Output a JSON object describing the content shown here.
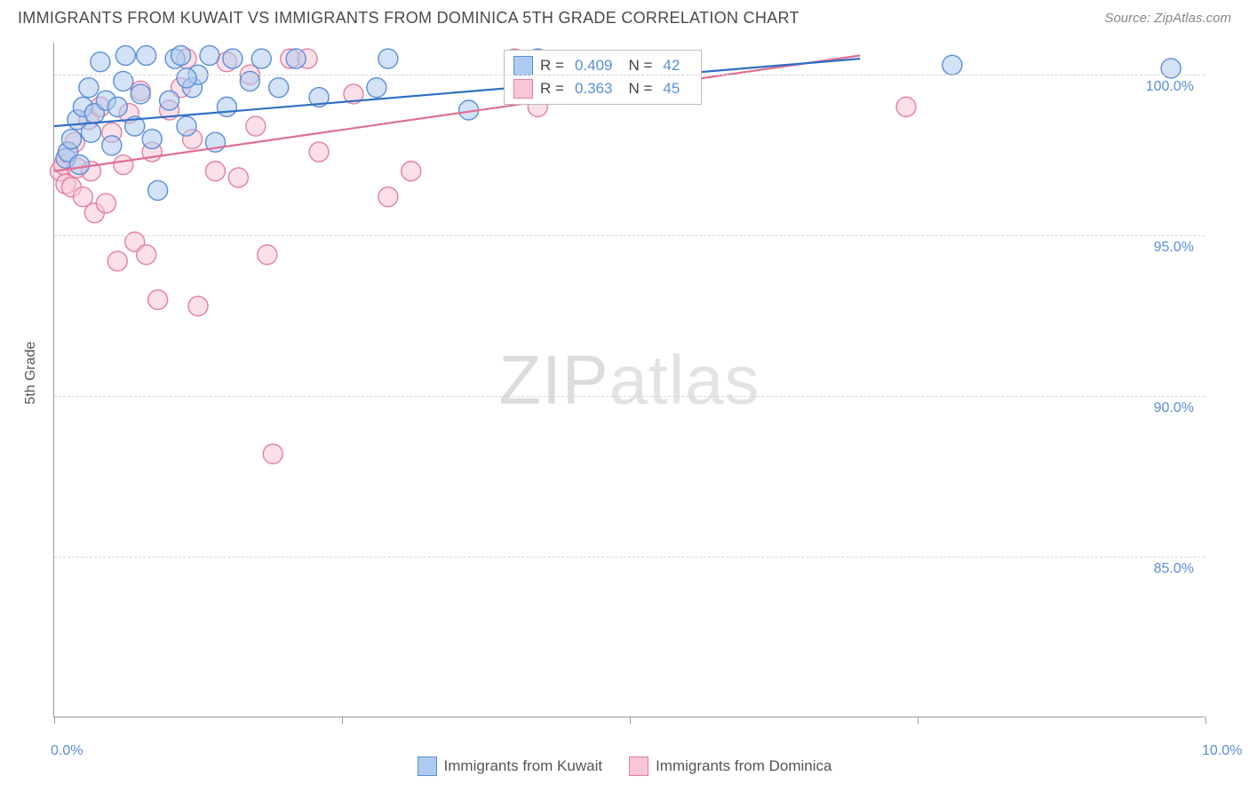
{
  "header": {
    "title": "IMMIGRANTS FROM KUWAIT VS IMMIGRANTS FROM DOMINICA 5TH GRADE CORRELATION CHART",
    "source": "Source: ZipAtlas.com"
  },
  "axes": {
    "ylabel_title": "5th Grade",
    "xlim": [
      0,
      10
    ],
    "ylim": [
      80,
      101
    ],
    "yticks": [
      {
        "v": 85.0,
        "label": "85.0%"
      },
      {
        "v": 90.0,
        "label": "90.0%"
      },
      {
        "v": 95.0,
        "label": "95.0%"
      },
      {
        "v": 100.0,
        "label": "100.0%"
      }
    ],
    "xticks_at": [
      0,
      2.5,
      5.0,
      7.5,
      10.0
    ],
    "xlabels": [
      {
        "v": 0.0,
        "label": "0.0%"
      },
      {
        "v": 10.0,
        "label": "10.0%"
      }
    ]
  },
  "style": {
    "grid_color": "#d5d5d5",
    "axis_color": "#9a9a9a",
    "tick_label_color": "#5a8fd6",
    "background": "#ffffff",
    "marker_radius": 11,
    "marker_stroke_width": 1.4,
    "line_width": 2.2
  },
  "watermark": {
    "zip": "ZIP",
    "atlas": "atlas"
  },
  "series": {
    "kuwait": {
      "name": "Immigrants from Kuwait",
      "fill": "#aecbef",
      "stroke": "#5a8fd6",
      "line_color": "#2f6fc2",
      "stats": {
        "r_label": "R =",
        "r_val": "0.409",
        "n_label": "N =",
        "n_val": "42"
      },
      "trend": {
        "x1": 0.0,
        "y1": 98.4,
        "x2": 7.0,
        "y2": 100.5
      },
      "points": [
        [
          0.1,
          97.4
        ],
        [
          0.12,
          97.6
        ],
        [
          0.15,
          98.0
        ],
        [
          0.2,
          98.6
        ],
        [
          0.22,
          97.2
        ],
        [
          0.25,
          99.0
        ],
        [
          0.3,
          99.6
        ],
        [
          0.32,
          98.2
        ],
        [
          0.35,
          98.8
        ],
        [
          0.4,
          100.4
        ],
        [
          0.45,
          99.2
        ],
        [
          0.5,
          97.8
        ],
        [
          0.55,
          99.0
        ],
        [
          0.6,
          99.8
        ],
        [
          0.62,
          100.6
        ],
        [
          0.7,
          98.4
        ],
        [
          0.75,
          99.4
        ],
        [
          0.8,
          100.6
        ],
        [
          0.85,
          98.0
        ],
        [
          0.9,
          96.4
        ],
        [
          1.0,
          99.2
        ],
        [
          1.05,
          100.5
        ],
        [
          1.1,
          100.6
        ],
        [
          1.15,
          98.4
        ],
        [
          1.2,
          99.6
        ],
        [
          1.25,
          100.0
        ],
        [
          1.35,
          100.6
        ],
        [
          1.4,
          97.9
        ],
        [
          1.5,
          99.0
        ],
        [
          1.55,
          100.5
        ],
        [
          1.7,
          99.8
        ],
        [
          1.8,
          100.5
        ],
        [
          1.95,
          99.6
        ],
        [
          2.1,
          100.5
        ],
        [
          2.3,
          99.3
        ],
        [
          2.8,
          99.6
        ],
        [
          2.9,
          100.5
        ],
        [
          3.6,
          98.9
        ],
        [
          4.2,
          100.5
        ],
        [
          7.8,
          100.3
        ],
        [
          9.7,
          100.2
        ],
        [
          1.15,
          99.9
        ]
      ]
    },
    "dominica": {
      "name": "Immigrants from Dominica",
      "fill": "#f7c7d5",
      "stroke": "#e37fa0",
      "line_color": "#df6f93",
      "stats": {
        "r_label": "R =",
        "r_val": "0.363",
        "n_label": "N =",
        "n_val": "45"
      },
      "trend": {
        "x1": 0.0,
        "y1": 97.0,
        "x2": 7.0,
        "y2": 100.6
      },
      "points": [
        [
          0.05,
          97.0
        ],
        [
          0.08,
          97.2
        ],
        [
          0.1,
          96.6
        ],
        [
          0.12,
          97.6
        ],
        [
          0.15,
          96.5
        ],
        [
          0.18,
          97.9
        ],
        [
          0.2,
          97.1
        ],
        [
          0.25,
          96.2
        ],
        [
          0.3,
          98.6
        ],
        [
          0.32,
          97.0
        ],
        [
          0.35,
          95.7
        ],
        [
          0.4,
          99.0
        ],
        [
          0.45,
          96.0
        ],
        [
          0.5,
          98.2
        ],
        [
          0.55,
          94.2
        ],
        [
          0.6,
          97.2
        ],
        [
          0.65,
          98.8
        ],
        [
          0.7,
          94.8
        ],
        [
          0.75,
          99.5
        ],
        [
          0.8,
          94.4
        ],
        [
          0.85,
          97.6
        ],
        [
          0.9,
          93.0
        ],
        [
          1.0,
          98.9
        ],
        [
          1.1,
          99.6
        ],
        [
          1.15,
          100.5
        ],
        [
          1.2,
          98.0
        ],
        [
          1.25,
          92.8
        ],
        [
          1.4,
          97.0
        ],
        [
          1.5,
          100.4
        ],
        [
          1.6,
          96.8
        ],
        [
          1.7,
          100.0
        ],
        [
          1.75,
          98.4
        ],
        [
          1.85,
          94.4
        ],
        [
          1.9,
          88.2
        ],
        [
          2.05,
          100.5
        ],
        [
          2.2,
          100.5
        ],
        [
          2.3,
          97.6
        ],
        [
          2.6,
          99.4
        ],
        [
          2.9,
          96.2
        ],
        [
          3.1,
          97.0
        ],
        [
          4.0,
          100.5
        ],
        [
          4.15,
          99.8
        ],
        [
          4.2,
          99.0
        ],
        [
          5.1,
          99.7
        ],
        [
          7.4,
          99.0
        ]
      ]
    }
  },
  "bottom_legend": {
    "kuwait": "Immigrants from Kuwait",
    "dominica": "Immigrants from Dominica"
  }
}
